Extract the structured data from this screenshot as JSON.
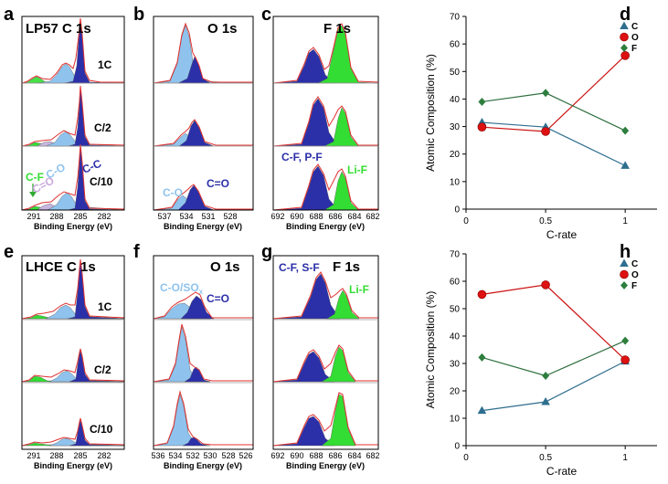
{
  "panels": [
    {
      "label": "a",
      "title": "LP57  C 1s",
      "xlabel": "Binding Energy (eV)",
      "ticks": [
        "291",
        "288",
        "285",
        "282"
      ],
      "rates": [
        "1C",
        "C/2",
        "C/10"
      ],
      "annotations": [
        "C-F",
        "C-O",
        "C=O",
        "C-C"
      ]
    },
    {
      "label": "b",
      "title": "O 1s",
      "xlabel": "Binding Energy (eV)",
      "ticks": [
        "537",
        "534",
        "531",
        "528"
      ],
      "annotations": [
        "C-O",
        "C=O"
      ]
    },
    {
      "label": "c",
      "title": "F 1s",
      "xlabel": "Binding Energy (eV)",
      "ticks": [
        "692",
        "690",
        "688",
        "686",
        "684",
        "682"
      ],
      "annotations": [
        "C-F, P-F",
        "Li-F"
      ]
    },
    {
      "label": "e",
      "title": "LHCE C 1s",
      "xlabel": "Binding Energy (eV)",
      "ticks": [
        "291",
        "288",
        "285",
        "282"
      ],
      "rates": [
        "1C",
        "C/2",
        "C/10"
      ]
    },
    {
      "label": "f",
      "title": "O 1s",
      "xlabel": "Binding Energy (eV)",
      "ticks": [
        "536",
        "534",
        "532",
        "530",
        "528",
        "526"
      ],
      "annotations": [
        "C-O/SO",
        "x",
        "C=O"
      ]
    },
    {
      "label": "g",
      "title": "F 1s",
      "xlabel": "Binding Energy (eV)",
      "ticks": [
        "692",
        "690",
        "688",
        "686",
        "684",
        "682"
      ],
      "annotations": [
        "C-F, S-F",
        "Li-F"
      ]
    }
  ],
  "colors": {
    "blue": "#2b2fa8",
    "light_blue": "#8fc3ee",
    "green": "#33dd33",
    "envelope": "#e03030",
    "c_line": "#2e6e8e",
    "o_line": "#cc1111",
    "f_line": "#2e6e3e"
  },
  "chart_data": [
    {
      "type": "line",
      "panel": "d",
      "title": "",
      "xlabel": "C-rate",
      "ylabel": "Atomic Composition (%)",
      "xlim": [
        0,
        1.2
      ],
      "ylim": [
        0,
        70
      ],
      "xticks": [
        "0",
        "0.5",
        "1"
      ],
      "yticks": [
        "0",
        "10",
        "20",
        "30",
        "40",
        "50",
        "60",
        "70"
      ],
      "x": [
        0.1,
        0.5,
        1
      ],
      "series": [
        {
          "name": "C",
          "values": [
            31.5,
            29.8,
            15.8
          ],
          "marker": "triangle"
        },
        {
          "name": "O",
          "values": [
            29.8,
            28.2,
            55.8
          ],
          "marker": "circle"
        },
        {
          "name": "F",
          "values": [
            39.0,
            42.2,
            28.5
          ],
          "marker": "diamond"
        }
      ],
      "legend": "top-right"
    },
    {
      "type": "line",
      "panel": "h",
      "title": "",
      "xlabel": "C-rate",
      "ylabel": "Atomic Composition (%)",
      "xlim": [
        0,
        1.2
      ],
      "ylim": [
        0,
        70
      ],
      "xticks": [
        "0",
        "0.5",
        "1"
      ],
      "yticks": [
        "0",
        "10",
        "20",
        "30",
        "40",
        "50",
        "60",
        "70"
      ],
      "x": [
        0.1,
        0.5,
        1
      ],
      "series": [
        {
          "name": "C",
          "values": [
            12.8,
            16.0,
            30.8
          ],
          "marker": "triangle"
        },
        {
          "name": "O",
          "values": [
            55.2,
            58.7,
            31.3
          ],
          "marker": "circle"
        },
        {
          "name": "F",
          "values": [
            32.2,
            25.5,
            38.3
          ],
          "marker": "diamond"
        }
      ],
      "legend": "top-right"
    }
  ]
}
